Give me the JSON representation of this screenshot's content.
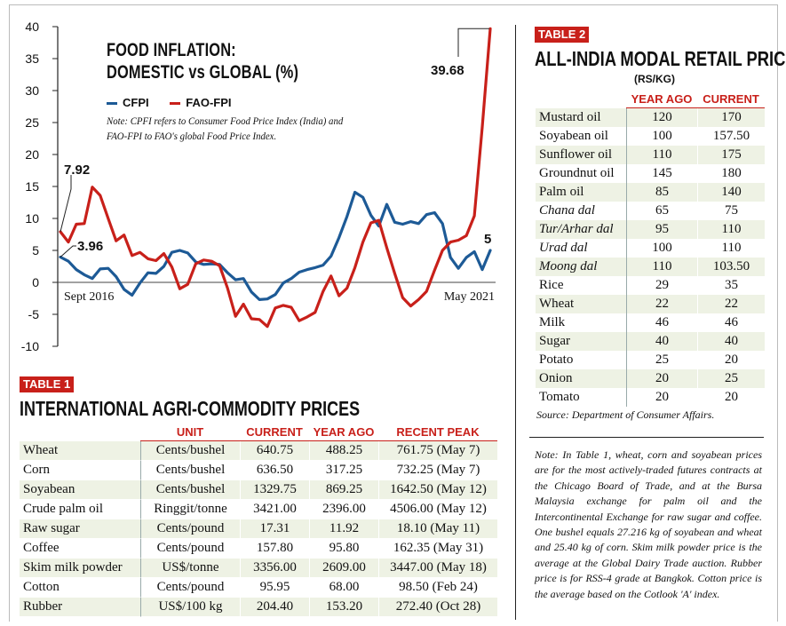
{
  "chart_data": {
    "type": "line",
    "title_line1": "FOOD INFLATION:",
    "title_line2": "DOMESTIC vs GLOBAL (%)",
    "note": "Note: CPFI refers to Consumer Food Price Index (India) and FAO-FPI to FAO's global Food Price Index.",
    "ylim": [
      -10,
      40
    ],
    "yticks": [
      "40",
      "35",
      "30",
      "25",
      "20",
      "15",
      "10",
      "5",
      "0",
      "-5",
      "-10"
    ],
    "x_start_label": "Sept 2016",
    "x_end_label": "May 2021",
    "series": [
      {
        "name": "CFPI",
        "color": "#1d5a96",
        "values": [
          3.96,
          3.3,
          2.0,
          1.2,
          0.6,
          2.1,
          2.2,
          0.9,
          -1.1,
          -2.0,
          -0.1,
          1.5,
          1.4,
          2.5,
          4.7,
          5.0,
          4.6,
          3.2,
          2.8,
          2.9,
          2.8,
          1.5,
          0.4,
          0.6,
          -1.5,
          -2.7,
          -2.6,
          -1.9,
          -0.1,
          0.6,
          1.6,
          2.0,
          2.3,
          2.7,
          4.1,
          7.0,
          10.3,
          14.1,
          13.3,
          10.5,
          8.8,
          12.2,
          9.4,
          9.1,
          9.5,
          9.2,
          10.6,
          10.9,
          9.2,
          3.9,
          2.2,
          3.9,
          4.8,
          2.0,
          5.0
        ],
        "start_label": "3.96",
        "end_label": "5"
      },
      {
        "name": "FAO-FPI",
        "color": "#c8201a",
        "values": [
          7.92,
          6.3,
          9.1,
          9.2,
          14.9,
          13.6,
          10.0,
          6.5,
          7.4,
          4.2,
          4.7,
          3.7,
          3.4,
          4.5,
          2.4,
          -1.0,
          -0.3,
          2.9,
          3.5,
          3.3,
          2.6,
          -0.9,
          -5.3,
          -3.4,
          -5.7,
          -5.8,
          -6.9,
          -4.0,
          -3.6,
          -3.9,
          -6.0,
          -5.4,
          -4.7,
          -1.4,
          1.0,
          -2.1,
          -0.9,
          2.3,
          6.3,
          9.3,
          9.7,
          5.4,
          1.4,
          -2.4,
          -3.7,
          -2.7,
          -1.4,
          1.9,
          5.0,
          6.3,
          6.6,
          7.3,
          10.4,
          24.3,
          39.68
        ],
        "start_label": "7.92",
        "end_label": "39.68"
      }
    ],
    "grid": false,
    "legend_position": "top-left"
  },
  "table1": {
    "tag": "TABLE 1",
    "title": "INTERNATIONAL AGRI-COMMODITY PRICES",
    "columns": [
      "UNIT",
      "CURRENT",
      "YEAR AGO",
      "RECENT PEAK"
    ],
    "rows": [
      {
        "name": "Wheat",
        "unit": "Cents/bushel",
        "current": "640.75",
        "year_ago": "488.25",
        "peak": "761.75 (May 7)"
      },
      {
        "name": "Corn",
        "unit": "Cents/bushel",
        "current": "636.50",
        "year_ago": "317.25",
        "peak": "732.25 (May 7)"
      },
      {
        "name": "Soyabean",
        "unit": "Cents/bushel",
        "current": "1329.75",
        "year_ago": "869.25",
        "peak": "1642.50 (May 12)"
      },
      {
        "name": "Crude palm oil",
        "unit": "Ringgit/tonne",
        "current": "3421.00",
        "year_ago": "2396.00",
        "peak": "4506.00 (May 12)"
      },
      {
        "name": "Raw sugar",
        "unit": "Cents/pound",
        "current": "17.31",
        "year_ago": "11.92",
        "peak": "18.10 (May 11)"
      },
      {
        "name": "Coffee",
        "unit": "Cents/pound",
        "current": "157.80",
        "year_ago": "95.80",
        "peak": "162.35 (May 31)"
      },
      {
        "name": "Skim milk powder",
        "unit": "US$/tonne",
        "current": "3356.00",
        "year_ago": "2609.00",
        "peak": "3447.00 (May 18)"
      },
      {
        "name": "Cotton",
        "unit": "Cents/pound",
        "current": "95.95",
        "year_ago": "68.00",
        "peak": "98.50 (Feb 24)"
      },
      {
        "name": "Rubber",
        "unit": "US$/100 kg",
        "current": "204.40",
        "year_ago": "153.20",
        "peak": "272.40 (Oct 28)"
      }
    ]
  },
  "table2": {
    "tag": "TABLE 2",
    "title": "ALL-INDIA MODAL RETAIL PRICE",
    "unit": "(RS/KG)",
    "columns": [
      "YEAR AGO",
      "CURRENT"
    ],
    "rows": [
      {
        "name": "Mustard oil",
        "year_ago": "120",
        "current": "170",
        "italic": false
      },
      {
        "name": "Soyabean oil",
        "year_ago": "100",
        "current": "157.50",
        "italic": false
      },
      {
        "name": "Sunflower oil",
        "year_ago": "110",
        "current": "175",
        "italic": false
      },
      {
        "name": "Groundnut oil",
        "year_ago": "145",
        "current": "180",
        "italic": false
      },
      {
        "name": "Palm oil",
        "year_ago": "85",
        "current": "140",
        "italic": false
      },
      {
        "name": "Chana dal",
        "year_ago": "65",
        "current": "75",
        "italic": true
      },
      {
        "name": "Tur/Arhar dal",
        "year_ago": "95",
        "current": "110",
        "italic": true
      },
      {
        "name": "Urad dal",
        "year_ago": "100",
        "current": "110",
        "italic": true
      },
      {
        "name": "Moong dal",
        "year_ago": "110",
        "current": "103.50",
        "italic": true
      },
      {
        "name": "Rice",
        "year_ago": "29",
        "current": "35",
        "italic": false
      },
      {
        "name": "Wheat",
        "year_ago": "22",
        "current": "22",
        "italic": false
      },
      {
        "name": "Milk",
        "year_ago": "46",
        "current": "46",
        "italic": false
      },
      {
        "name": "Sugar",
        "year_ago": "40",
        "current": "40",
        "italic": false
      },
      {
        "name": "Potato",
        "year_ago": "25",
        "current": "20",
        "italic": false
      },
      {
        "name": "Onion",
        "year_ago": "20",
        "current": "25",
        "italic": false
      },
      {
        "name": "Tomato",
        "year_ago": "20",
        "current": "20",
        "italic": false
      }
    ],
    "source": "Source: Department of Consumer Affairs."
  },
  "footnote": "Note: In Table 1, wheat, corn and soyabean prices are for the most actively-traded futures contracts at the Chicago Board of Trade, and at the Bursa Malaysia exchange for palm oil and the Intercontinental Exchange for raw sugar and coffee. One bushel equals 27.216 kg of soyabean and wheat and 25.40 kg of corn. Skim milk powder price is the average at the Global Dairy Trade auction. Rubber price is for RSS-4 grade at Bangkok. Cotton price is the average based on the Cotlook 'A' index."
}
